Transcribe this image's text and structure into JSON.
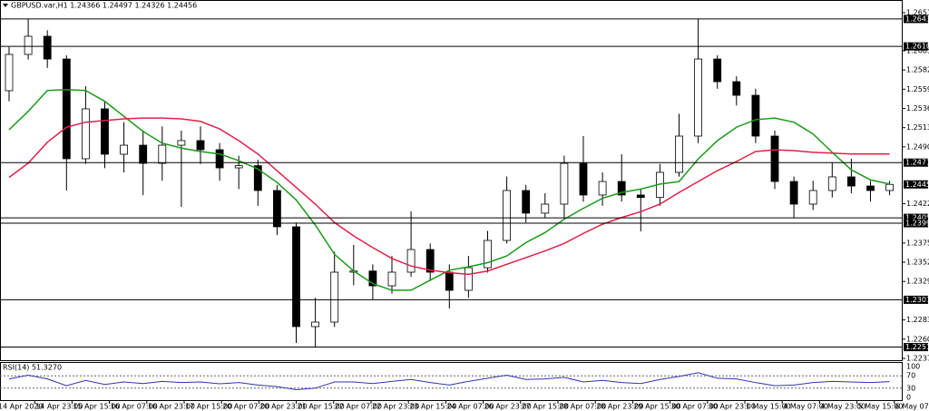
{
  "chart_data": {
    "type": "candlestick",
    "title": "GBPUSD.var,H1 1.24366 1.24497 1.24326 1.24456",
    "up_color": "#ffffff",
    "down_color": "#000000",
    "open": [
      1.25577,
      1.26011,
      1.26228,
      1.25956,
      1.24763,
      1.2536,
      1.24817,
      1.24925,
      1.24708,
      1.24925,
      1.2498,
      1.24871,
      1.24654,
      1.2468,
      1.24383,
      1.23949,
      1.22755,
      1.22809,
      1.23406,
      1.2342,
      1.23243,
      1.23406,
      1.23677,
      1.23406,
      1.23189,
      1.2346,
      1.23786,
      1.24383,
      1.24112,
      1.2422,
      1.24708,
      1.24329,
      1.24491,
      1.24329,
      1.243,
      1.246,
      1.25034,
      1.25956,
      1.25685,
      1.25522,
      1.25034,
      1.24491,
      1.2422,
      1.24383,
      1.24546,
      1.24437,
      1.24383
    ],
    "high": [
      1.261,
      1.26435,
      1.263,
      1.26,
      1.25631,
      1.2545,
      1.252,
      1.251,
      1.2515,
      1.251,
      1.2515,
      1.2495,
      1.248,
      1.2475,
      1.2445,
      1.24,
      1.231,
      1.2365,
      1.23732,
      1.235,
      1.236,
      1.24133,
      1.2375,
      1.235,
      1.236,
      1.239,
      1.2455,
      1.2445,
      1.2435,
      1.248,
      1.25034,
      1.246,
      1.24817,
      1.244,
      1.247,
      1.253,
      1.26435,
      1.26,
      1.2575,
      1.256,
      1.251,
      1.2455,
      1.245,
      1.24717,
      1.24763,
      1.245,
      1.24497
    ],
    "low": [
      1.2545,
      1.2595,
      1.2585,
      1.24383,
      1.247,
      1.2465,
      1.246,
      1.24329,
      1.245,
      1.24187,
      1.247,
      1.245,
      1.244,
      1.242,
      1.2385,
      1.2256,
      1.2251,
      1.2275,
      1.2325,
      1.23076,
      1.2315,
      1.2335,
      1.233,
      1.22972,
      1.231,
      1.234,
      1.2375,
      1.24,
      1.24056,
      1.24057,
      1.2425,
      1.242,
      1.2425,
      1.23894,
      1.242,
      1.2455,
      1.2495,
      1.256,
      1.254,
      1.2495,
      1.244,
      1.24056,
      1.2415,
      1.243,
      1.2435,
      1.2425,
      1.24326
    ],
    "close": [
      1.26011,
      1.26228,
      1.25956,
      1.24763,
      1.2536,
      1.24817,
      1.24925,
      1.24708,
      1.24925,
      1.2498,
      1.24871,
      1.24654,
      1.2468,
      1.24383,
      1.23949,
      1.22755,
      1.22809,
      1.23406,
      1.2342,
      1.23243,
      1.23406,
      1.23677,
      1.23406,
      1.23189,
      1.2346,
      1.23786,
      1.24383,
      1.24112,
      1.2422,
      1.24708,
      1.24329,
      1.24491,
      1.24329,
      1.243,
      1.246,
      1.25034,
      1.25956,
      1.25685,
      1.25522,
      1.25034,
      1.24491,
      1.2422,
      1.24383,
      1.24546,
      1.24437,
      1.24383,
      1.24456
    ],
    "series": [
      {
        "color": "#1a9a1a",
        "values": [
          1.2511,
          1.2533,
          1.2558,
          1.2559,
          1.2558,
          1.2545,
          1.2527,
          1.2509,
          1.2495,
          1.2489,
          1.2485,
          1.2482,
          1.2474,
          1.2464,
          1.2448,
          1.2427,
          1.2397,
          1.2362,
          1.2342,
          1.2327,
          1.2319,
          1.2319,
          1.2331,
          1.2343,
          1.2347,
          1.2352,
          1.236,
          1.2376,
          1.2388,
          1.2404,
          1.2417,
          1.2429,
          1.2436,
          1.244,
          1.2446,
          1.2449,
          1.2476,
          1.2498,
          1.2514,
          1.2523,
          1.2525,
          1.252,
          1.2506,
          1.2484,
          1.2463,
          1.2451,
          1.2446
        ]
      },
      {
        "color": "#e0204a",
        "values": [
          1.2454,
          1.2471,
          1.2496,
          1.2514,
          1.252,
          1.2522,
          1.2524,
          1.2525,
          1.2525,
          1.2524,
          1.2521,
          1.2512,
          1.2498,
          1.2482,
          1.2462,
          1.2442,
          1.2422,
          1.24,
          1.2384,
          1.237,
          1.2357,
          1.2348,
          1.2343,
          1.234,
          1.2338,
          1.2342,
          1.235,
          1.2358,
          1.2366,
          1.2375,
          1.2387,
          1.2398,
          1.2406,
          1.2413,
          1.2422,
          1.2436,
          1.2449,
          1.2462,
          1.2473,
          1.2485,
          1.2487,
          1.2486,
          1.2484,
          1.2483,
          1.2482,
          1.2482,
          1.2482
        ]
      }
    ],
    "ylim": [
      1.22375,
      1.2651
    ],
    "yticks": [
      {
        "value": 1.2651,
        "label": "1.26510"
      },
      1.26055,
      1.25825,
      1.25595,
      1.25365,
      1.25135,
      1.24905,
      1.24225,
      1.23755,
      1.23525,
      1.23295,
      1.22835,
      1.22605,
      1.22375
    ],
    "levels": [
      1.26435,
      1.26107,
      1.24717,
      1.24056,
      1.23992,
      1.23076,
      {
        "value": 1.2251,
        "label": "1.22510"
      }
    ],
    "current_price": 1.24456,
    "x_labels": [
      "14 Apr 2020",
      "14 Apr 23:00",
      "15 Apr 15:00",
      "16 Apr 07:00",
      "16 Apr 23:00",
      "17 Apr 15:00",
      "20 Apr 07:00",
      "20 Apr 23:00",
      "21 Apr 15:00",
      "22 Apr 07:00",
      "22 Apr 23:00",
      "23 Apr 15:00",
      "24 Apr 07:00",
      "26 Apr 23:00",
      "27 Apr 15:00",
      "28 Apr 07:00",
      "28 Apr 23:00",
      "29 Apr 15:00",
      "30 Apr 07:00",
      "30 Apr 23:00",
      "1 May 15:00",
      "4 May 07:00",
      "4 May 23:00",
      "5 May 15:00",
      "6 May 07:00"
    ],
    "indicator": {
      "label": "RSI(14) 51.3270",
      "color": "#3333aa",
      "ylim": [
        0,
        100
      ],
      "yticks": [
        0,
        30,
        70,
        100
      ],
      "values": [
        60,
        72,
        60,
        38,
        55,
        42,
        50,
        45,
        52,
        48,
        50,
        44,
        48,
        40,
        35,
        25,
        30,
        50,
        50,
        45,
        52,
        58,
        48,
        40,
        52,
        62,
        72,
        58,
        60,
        65,
        50,
        55,
        48,
        45,
        58,
        68,
        80,
        62,
        60,
        48,
        38,
        40,
        48,
        52,
        50,
        48,
        51
      ]
    }
  }
}
